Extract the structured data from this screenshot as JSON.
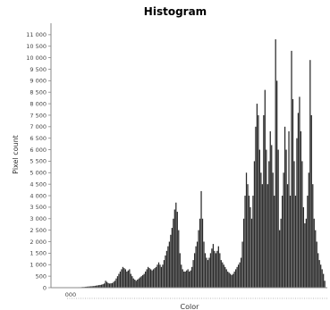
{
  "chart_data": {
    "type": "bar",
    "title": "Histogram",
    "xlabel": "Color",
    "ylabel": "Pixel count",
    "ylim": [
      0,
      11500
    ],
    "yticks": [
      0,
      500,
      1000,
      1500,
      2000,
      2500,
      3000,
      3500,
      4000,
      4500,
      5000,
      5500,
      6000,
      6500,
      7000,
      7500,
      8000,
      8500,
      9000,
      9500,
      10000,
      10500,
      11000
    ],
    "ytick_labels": [
      "0",
      "500",
      "1 000",
      "1 500",
      "2 000",
      "2 500",
      "3 000",
      "3 500",
      "4 000",
      "4 500",
      "5 000",
      "5 500",
      "6 000",
      "6 500",
      "7 000",
      "7 500",
      "8 000",
      "8 500",
      "9 000",
      "9 500",
      "10 000",
      "10 500",
      "11 000"
    ],
    "x_tick_labels_visible": "overlapping, unreadable",
    "grid": false,
    "legend": "none",
    "bar_color": "#2a2a2a",
    "x_range": [
      0,
      255
    ],
    "values": [
      0,
      0,
      0,
      0,
      0,
      0,
      0,
      0,
      0,
      0,
      0,
      0,
      0,
      5,
      10,
      10,
      20,
      20,
      25,
      30,
      30,
      40,
      45,
      50,
      55,
      60,
      65,
      70,
      80,
      90,
      100,
      110,
      120,
      130,
      150,
      180,
      300,
      250,
      200,
      180,
      190,
      200,
      250,
      300,
      400,
      500,
      600,
      700,
      800,
      900,
      850,
      800,
      700,
      750,
      800,
      600,
      500,
      400,
      350,
      300,
      350,
      400,
      450,
      500,
      550,
      600,
      700,
      800,
      900,
      850,
      800,
      750,
      800,
      850,
      900,
      1000,
      1100,
      1000,
      900,
      1000,
      1200,
      1400,
      1600,
      1800,
      2000,
      2300,
      2600,
      3000,
      3400,
      3700,
      3300,
      2500,
      1500,
      1000,
      800,
      700,
      700,
      750,
      800,
      700,
      750,
      900,
      1200,
      1500,
      1800,
      2000,
      2500,
      3000,
      4200,
      3000,
      2000,
      1500,
      1300,
      1200,
      1300,
      1500,
      1700,
      1900,
      1600,
      1500,
      1600,
      1800,
      1500,
      1200,
      1100,
      1000,
      900,
      800,
      700,
      650,
      600,
      550,
      600,
      700,
      800,
      900,
      1000,
      1100,
      1300,
      2000,
      3000,
      4000,
      5000,
      4500,
      4000,
      3500,
      3000,
      4000,
      5500,
      7000,
      8000,
      7500,
      6000,
      5000,
      4500,
      7500,
      8600,
      6000,
      4500,
      5500,
      6800,
      6200,
      5000,
      4000,
      10800,
      9000,
      6000,
      2500,
      3000,
      4000,
      5000,
      7000,
      6000,
      4500,
      6800,
      4000,
      10300,
      8200,
      5500,
      4000,
      6500,
      7600,
      8300,
      6800,
      5500,
      3500,
      2800,
      3000,
      4000,
      5000,
      9900,
      7500,
      4500,
      3000,
      2500,
      2000,
      1500,
      1200,
      1000,
      800,
      600,
      300
    ]
  }
}
